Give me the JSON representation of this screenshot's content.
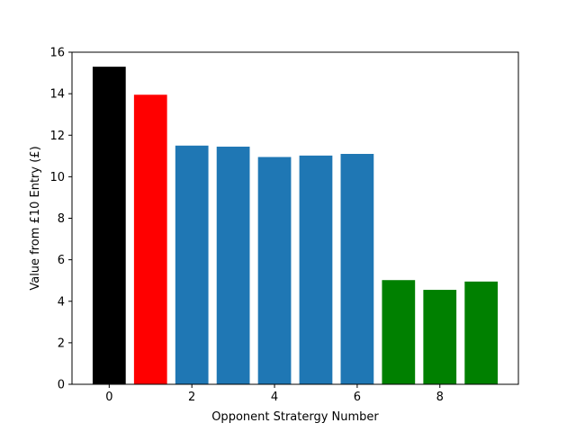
{
  "chart_data": {
    "type": "bar",
    "title": "",
    "xlabel": "Opponent Stratergy Number",
    "ylabel": "Value from £10 Entry (£)",
    "x": [
      0,
      1,
      2,
      3,
      4,
      5,
      6,
      7,
      8,
      9
    ],
    "values": [
      15.3,
      13.95,
      11.5,
      11.45,
      10.95,
      11.02,
      11.1,
      5.02,
      4.55,
      4.95
    ],
    "colors": [
      "#000000",
      "#ff0000",
      "#1f77b4",
      "#1f77b4",
      "#1f77b4",
      "#1f77b4",
      "#1f77b4",
      "#008000",
      "#008000",
      "#008000"
    ],
    "xlim": [
      -0.9,
      9.9
    ],
    "ylim": [
      0,
      16
    ],
    "xticks": [
      0,
      2,
      4,
      6,
      8
    ],
    "yticks": [
      0,
      2,
      4,
      6,
      8,
      10,
      12,
      14,
      16
    ],
    "grid": false,
    "legend": "none"
  }
}
